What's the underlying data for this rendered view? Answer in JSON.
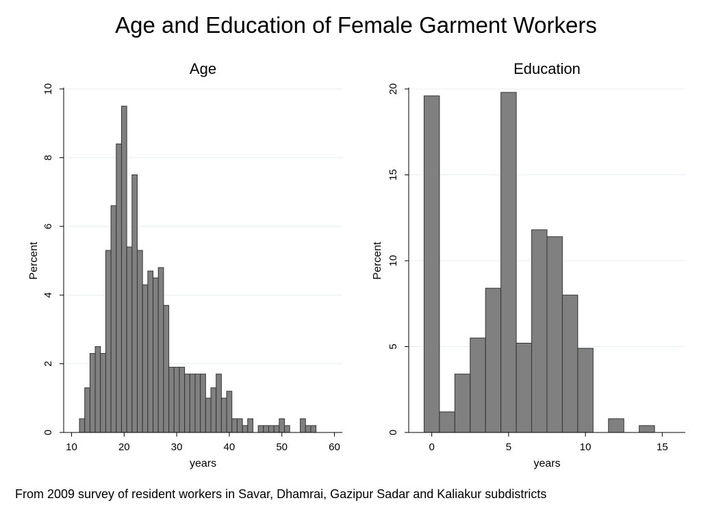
{
  "title": "Age and Education of Female Garment Workers",
  "note": "From 2009 survey of resident workers in Savar, Dhamrai, Gazipur Sadar and Kaliakur subdistricts",
  "colors": {
    "bar_fill": "#808080",
    "bar_stroke": "#333333",
    "grid": "#e8eef2",
    "axis": "#000000"
  },
  "chart_data": [
    {
      "type": "bar",
      "title": "Age",
      "xlabel": "years",
      "ylabel": "Percent",
      "xlim": [
        8.5,
        61.5
      ],
      "ylim": [
        0,
        10
      ],
      "xticks": [
        10,
        20,
        30,
        40,
        50,
        60
      ],
      "yticks": [
        0,
        2,
        4,
        6,
        8,
        10
      ],
      "bin_width": 1,
      "grid": true,
      "x": [
        12,
        13,
        14,
        15,
        16,
        17,
        18,
        19,
        20,
        21,
        22,
        23,
        24,
        25,
        26,
        27,
        28,
        29,
        30,
        31,
        32,
        33,
        34,
        35,
        36,
        37,
        38,
        39,
        40,
        41,
        42,
        43,
        44,
        46,
        47,
        48,
        49,
        50,
        51,
        54,
        55,
        56
      ],
      "values": [
        0.4,
        1.3,
        2.3,
        2.5,
        2.3,
        5.3,
        6.6,
        8.4,
        9.5,
        5.4,
        7.5,
        5.3,
        4.3,
        4.7,
        4.5,
        4.8,
        3.7,
        1.9,
        1.9,
        1.9,
        1.7,
        1.7,
        1.7,
        1.7,
        1.0,
        1.3,
        1.7,
        1.0,
        1.2,
        0.4,
        0.4,
        0.2,
        0.4,
        0.2,
        0.2,
        0.2,
        0.2,
        0.4,
        0.2,
        0.4,
        0.2,
        0.2
      ]
    },
    {
      "type": "bar",
      "title": "Education",
      "xlabel": "years",
      "ylabel": "Percent",
      "xlim": [
        -1.5,
        16.5
      ],
      "ylim": [
        0,
        20
      ],
      "xticks": [
        0,
        5,
        10,
        15
      ],
      "yticks": [
        0,
        5,
        10,
        15,
        20
      ],
      "bin_width": 1,
      "grid": true,
      "x": [
        0,
        1,
        2,
        3,
        4,
        5,
        6,
        7,
        8,
        9,
        10,
        12,
        14
      ],
      "values": [
        19.6,
        1.2,
        3.4,
        5.5,
        8.4,
        19.8,
        5.2,
        11.8,
        11.4,
        8.0,
        4.9,
        0.8,
        0.4
      ]
    }
  ]
}
